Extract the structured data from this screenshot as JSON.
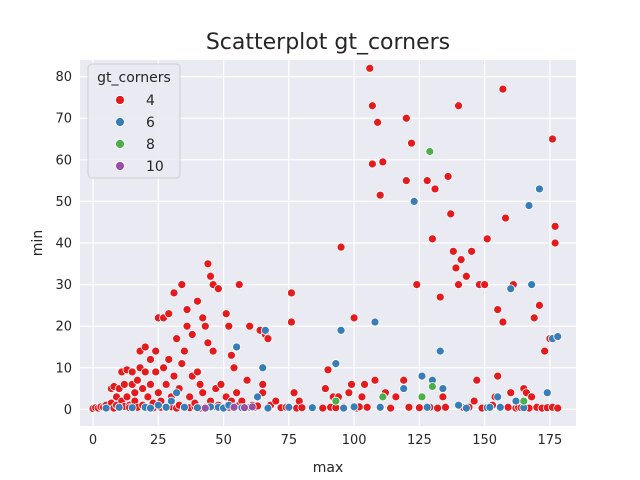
{
  "chart_data": {
    "type": "scatter",
    "title": "Scatterplot gt_corners",
    "xlabel": "max",
    "ylabel": "min",
    "xlim": [
      -5,
      185
    ],
    "ylim": [
      -4,
      84
    ],
    "xticks": [
      0,
      25,
      50,
      75,
      100,
      125,
      150,
      175
    ],
    "yticks": [
      0,
      10,
      20,
      30,
      40,
      50,
      60,
      70,
      80
    ],
    "grid": true,
    "legend": {
      "title": "gt_corners",
      "position": "top-left",
      "entries": [
        {
          "label": "4",
          "color": "#e41a1c"
        },
        {
          "label": "6",
          "color": "#377eb8"
        },
        {
          "label": "8",
          "color": "#4daf4a"
        },
        {
          "label": "10",
          "color": "#984ea3"
        }
      ]
    },
    "series": [
      {
        "name": "4",
        "color": "#e41a1c",
        "points": [
          [
            0,
            0.2
          ],
          [
            1,
            0.4
          ],
          [
            2,
            0.3
          ],
          [
            3,
            0.6
          ],
          [
            4,
            0.5
          ],
          [
            5,
            1
          ],
          [
            6,
            0.4
          ],
          [
            7,
            1.5
          ],
          [
            7,
            5
          ],
          [
            8,
            0.3
          ],
          [
            8,
            5.5
          ],
          [
            9,
            1
          ],
          [
            9,
            3
          ],
          [
            10,
            0.5
          ],
          [
            10,
            5
          ],
          [
            11,
            2
          ],
          [
            11,
            9
          ],
          [
            12,
            0.7
          ],
          [
            12,
            6
          ],
          [
            13,
            9.5
          ],
          [
            13,
            3
          ],
          [
            14,
            1
          ],
          [
            14,
            0.4
          ],
          [
            15,
            6
          ],
          [
            15,
            9
          ],
          [
            16,
            2
          ],
          [
            16,
            4
          ],
          [
            17,
            0.5
          ],
          [
            17,
            7
          ],
          [
            18,
            14
          ],
          [
            18,
            10
          ],
          [
            19,
            1
          ],
          [
            19,
            5
          ],
          [
            20,
            9
          ],
          [
            20,
            15
          ],
          [
            21,
            0.5
          ],
          [
            21,
            3
          ],
          [
            22,
            12
          ],
          [
            22,
            6
          ],
          [
            23,
            0.3
          ],
          [
            23,
            1.5
          ],
          [
            24,
            9
          ],
          [
            24,
            14
          ],
          [
            25,
            22
          ],
          [
            25,
            4
          ],
          [
            26,
            0.5
          ],
          [
            26,
            2
          ],
          [
            27,
            10
          ],
          [
            27,
            22
          ],
          [
            28,
            0.4
          ],
          [
            28,
            6
          ],
          [
            29,
            12
          ],
          [
            29,
            23
          ],
          [
            30,
            0.6
          ],
          [
            30,
            3
          ],
          [
            31,
            28
          ],
          [
            31,
            8
          ],
          [
            32,
            0.3
          ],
          [
            32,
            17
          ],
          [
            33,
            1
          ],
          [
            33,
            5
          ],
          [
            34,
            30
          ],
          [
            34,
            11
          ],
          [
            35,
            0.5
          ],
          [
            35,
            14
          ],
          [
            36,
            20
          ],
          [
            36,
            24
          ],
          [
            37,
            0.4
          ],
          [
            37,
            3
          ],
          [
            38,
            18
          ],
          [
            38,
            8
          ],
          [
            39,
            0.7
          ],
          [
            39,
            1.5
          ],
          [
            40,
            9
          ],
          [
            40,
            26
          ],
          [
            41,
            0.3
          ],
          [
            41,
            6
          ],
          [
            42,
            22
          ],
          [
            42,
            4
          ],
          [
            43,
            20
          ],
          [
            43,
            0.5
          ],
          [
            44,
            35
          ],
          [
            44,
            16
          ],
          [
            45,
            32
          ],
          [
            45,
            2
          ],
          [
            46,
            30
          ],
          [
            46,
            14
          ],
          [
            47,
            0.6
          ],
          [
            47,
            5
          ],
          [
            48,
            29
          ],
          [
            48,
            1
          ],
          [
            49,
            6
          ],
          [
            50,
            0.4
          ],
          [
            51,
            23
          ],
          [
            51,
            3
          ],
          [
            52,
            20
          ],
          [
            52,
            0.5
          ],
          [
            53,
            13
          ],
          [
            53,
            2
          ],
          [
            54,
            10
          ],
          [
            54,
            0.6
          ],
          [
            55,
            4
          ],
          [
            56,
            30
          ],
          [
            56,
            1
          ],
          [
            57,
            2
          ],
          [
            58,
            0.3
          ],
          [
            59,
            7
          ],
          [
            60,
            20
          ],
          [
            61,
            1
          ],
          [
            62,
            0.5
          ],
          [
            63,
            0.8
          ],
          [
            64,
            19
          ],
          [
            65,
            4
          ],
          [
            65,
            6
          ],
          [
            66,
            18
          ],
          [
            67,
            17
          ],
          [
            68,
            1
          ],
          [
            70,
            2
          ],
          [
            72,
            0.4
          ],
          [
            74,
            0.5
          ],
          [
            76,
            28
          ],
          [
            76,
            21
          ],
          [
            77,
            4
          ],
          [
            78,
            0.3
          ],
          [
            79,
            2
          ],
          [
            80,
            0.4
          ],
          [
            88,
            0.3
          ],
          [
            89,
            5
          ],
          [
            90,
            9.5
          ],
          [
            91,
            0.5
          ],
          [
            92,
            3
          ],
          [
            93,
            0.4
          ],
          [
            94,
            3
          ],
          [
            95,
            39
          ],
          [
            96,
            0.5
          ],
          [
            98,
            4
          ],
          [
            99,
            6
          ],
          [
            100,
            22
          ],
          [
            101,
            0.3
          ],
          [
            102,
            0.6
          ],
          [
            103,
            3
          ],
          [
            104,
            6
          ],
          [
            105,
            0.5
          ],
          [
            106,
            82
          ],
          [
            107,
            73
          ],
          [
            107,
            59
          ],
          [
            108,
            7
          ],
          [
            109,
            69
          ],
          [
            110,
            0.4
          ],
          [
            110,
            51.5
          ],
          [
            111,
            59.5
          ],
          [
            112,
            4
          ],
          [
            114,
            0.3
          ],
          [
            116,
            3
          ],
          [
            119,
            7
          ],
          [
            120,
            70
          ],
          [
            120,
            55
          ],
          [
            121,
            0.5
          ],
          [
            122,
            64
          ],
          [
            124,
            30
          ],
          [
            125,
            0.4
          ],
          [
            126,
            8
          ],
          [
            128,
            55
          ],
          [
            129,
            0.5
          ],
          [
            130,
            41
          ],
          [
            131,
            53
          ],
          [
            132,
            0.3
          ],
          [
            133,
            27
          ],
          [
            134,
            3
          ],
          [
            135,
            0.5
          ],
          [
            136,
            56
          ],
          [
            137,
            47
          ],
          [
            138,
            38
          ],
          [
            139,
            34
          ],
          [
            140,
            73
          ],
          [
            140,
            30
          ],
          [
            141,
            36
          ],
          [
            142,
            0.4
          ],
          [
            143,
            32
          ],
          [
            144,
            0.5
          ],
          [
            145,
            38
          ],
          [
            146,
            2
          ],
          [
            147,
            7
          ],
          [
            148,
            30
          ],
          [
            149,
            0.3
          ],
          [
            150,
            30
          ],
          [
            151,
            41
          ],
          [
            152,
            0.5
          ],
          [
            153,
            1
          ],
          [
            154,
            3
          ],
          [
            155,
            24
          ],
          [
            155,
            8
          ],
          [
            156,
            0.4
          ],
          [
            157,
            77
          ],
          [
            157,
            21
          ],
          [
            158,
            46
          ],
          [
            159,
            0.5
          ],
          [
            160,
            4
          ],
          [
            161,
            30
          ],
          [
            162,
            0.3
          ],
          [
            163,
            0.5
          ],
          [
            164,
            0.4
          ],
          [
            165,
            5
          ],
          [
            166,
            4
          ],
          [
            167,
            0.3
          ],
          [
            168,
            3
          ],
          [
            169,
            22
          ],
          [
            170,
            0.5
          ],
          [
            171,
            25
          ],
          [
            172,
            0.3
          ],
          [
            173,
            14
          ],
          [
            174,
            0.4
          ],
          [
            175,
            17
          ],
          [
            176,
            0.5
          ],
          [
            176,
            65
          ],
          [
            177,
            44
          ],
          [
            177,
            40
          ],
          [
            178,
            0.3
          ]
        ]
      },
      {
        "name": "6",
        "color": "#377eb8",
        "points": [
          [
            5,
            0.3
          ],
          [
            10,
            0.5
          ],
          [
            15,
            0.4
          ],
          [
            20,
            0.5
          ],
          [
            22,
            0.3
          ],
          [
            25,
            1
          ],
          [
            28,
            0.5
          ],
          [
            30,
            2
          ],
          [
            32,
            4
          ],
          [
            35,
            0.5
          ],
          [
            40,
            0.4
          ],
          [
            45,
            0.6
          ],
          [
            48,
            0.5
          ],
          [
            50,
            0.3
          ],
          [
            52,
            1
          ],
          [
            55,
            15
          ],
          [
            57,
            0.4
          ],
          [
            60,
            0.5
          ],
          [
            63,
            3
          ],
          [
            65,
            10
          ],
          [
            66,
            19
          ],
          [
            67,
            0.3
          ],
          [
            75,
            0.5
          ],
          [
            84,
            0.4
          ],
          [
            93,
            11
          ],
          [
            95,
            19
          ],
          [
            96,
            0.3
          ],
          [
            100,
            0.6
          ],
          [
            108,
            21
          ],
          [
            110,
            0.5
          ],
          [
            119,
            5
          ],
          [
            123,
            50
          ],
          [
            126,
            8
          ],
          [
            128,
            0.5
          ],
          [
            130,
            7
          ],
          [
            133,
            14
          ],
          [
            134,
            5
          ],
          [
            140,
            1
          ],
          [
            143,
            0.3
          ],
          [
            151,
            0.4
          ],
          [
            152,
            0.5
          ],
          [
            155,
            3
          ],
          [
            156,
            0.5
          ],
          [
            160,
            29
          ],
          [
            162,
            2
          ],
          [
            165,
            0.4
          ],
          [
            167,
            49
          ],
          [
            168,
            30
          ],
          [
            171,
            53
          ],
          [
            174,
            4
          ],
          [
            176,
            17
          ],
          [
            178,
            17.5
          ]
        ]
      },
      {
        "name": "8",
        "color": "#4daf4a",
        "points": [
          [
            93,
            2
          ],
          [
            111,
            3
          ],
          [
            126,
            3
          ],
          [
            129,
            62
          ],
          [
            130,
            5.5
          ],
          [
            165,
            2
          ]
        ]
      },
      {
        "name": "10",
        "color": "#984ea3",
        "points": [
          [
            43,
            0.3
          ],
          [
            54,
            0.5
          ],
          [
            58,
            0.4
          ],
          [
            61,
            0.6
          ]
        ]
      }
    ]
  }
}
